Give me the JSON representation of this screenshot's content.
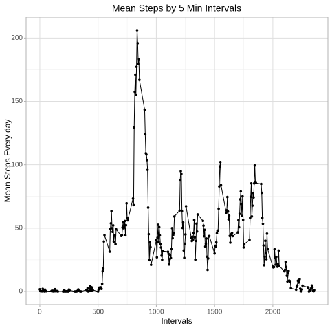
{
  "chart_data": {
    "type": "line",
    "title": "Mean Steps by 5 Min Intervals",
    "x_label": "Intervals",
    "y_label": "Mean Steps Every day",
    "x": [
      0,
      5,
      10,
      15,
      20,
      25,
      30,
      35,
      40,
      45,
      50,
      55,
      100,
      105,
      110,
      115,
      120,
      125,
      130,
      135,
      140,
      145,
      150,
      155,
      200,
      205,
      210,
      215,
      220,
      225,
      230,
      235,
      240,
      245,
      250,
      255,
      300,
      305,
      310,
      315,
      320,
      325,
      330,
      335,
      340,
      345,
      350,
      355,
      400,
      405,
      410,
      415,
      420,
      425,
      430,
      435,
      440,
      445,
      450,
      455,
      500,
      505,
      510,
      515,
      520,
      525,
      530,
      535,
      540,
      545,
      550,
      555,
      600,
      605,
      610,
      615,
      620,
      625,
      630,
      635,
      640,
      645,
      650,
      655,
      700,
      705,
      710,
      715,
      720,
      725,
      730,
      735,
      740,
      745,
      750,
      755,
      800,
      805,
      810,
      815,
      820,
      825,
      830,
      835,
      840,
      845,
      850,
      855,
      900,
      905,
      910,
      915,
      920,
      925,
      930,
      935,
      940,
      945,
      950,
      955,
      1000,
      1005,
      1010,
      1015,
      1020,
      1025,
      1030,
      1035,
      1040,
      1045,
      1050,
      1055,
      1100,
      1105,
      1110,
      1115,
      1120,
      1125,
      1130,
      1135,
      1140,
      1145,
      1150,
      1155,
      1200,
      1205,
      1210,
      1215,
      1220,
      1225,
      1230,
      1235,
      1240,
      1245,
      1250,
      1255,
      1300,
      1305,
      1310,
      1315,
      1320,
      1325,
      1330,
      1335,
      1340,
      1345,
      1350,
      1355,
      1400,
      1405,
      1410,
      1415,
      1420,
      1425,
      1430,
      1435,
      1440,
      1445,
      1450,
      1455,
      1500,
      1505,
      1510,
      1515,
      1520,
      1525,
      1530,
      1535,
      1540,
      1545,
      1550,
      1555,
      1600,
      1605,
      1610,
      1615,
      1620,
      1625,
      1630,
      1635,
      1640,
      1645,
      1650,
      1655,
      1700,
      1705,
      1710,
      1715,
      1720,
      1725,
      1730,
      1735,
      1740,
      1745,
      1750,
      1755,
      1800,
      1805,
      1810,
      1815,
      1820,
      1825,
      1830,
      1835,
      1840,
      1845,
      1850,
      1855,
      1900,
      1905,
      1910,
      1915,
      1920,
      1925,
      1930,
      1935,
      1940,
      1945,
      1950,
      1955,
      2000,
      2005,
      2010,
      2015,
      2020,
      2025,
      2030,
      2035,
      2040,
      2045,
      2050,
      2055,
      2100,
      2105,
      2110,
      2115,
      2120,
      2125,
      2130,
      2135,
      2140,
      2145,
      2150,
      2155,
      2200,
      2205,
      2210,
      2215,
      2220,
      2225,
      2230,
      2235,
      2240,
      2245,
      2250,
      2255,
      2300,
      2305,
      2310,
      2315,
      2320,
      2325,
      2330,
      2335,
      2340,
      2345,
      2350,
      2355
    ],
    "values": [
      1.72,
      0.34,
      0.13,
      0.15,
      0.08,
      2.09,
      0.53,
      0.87,
      0,
      1.47,
      0.3,
      0.13,
      0.32,
      0.68,
      0.15,
      0.34,
      0,
      1.11,
      1.83,
      0.17,
      0.17,
      0.38,
      0.26,
      0,
      0,
      0,
      1.13,
      0,
      0,
      0.13,
      0,
      0.23,
      0,
      0,
      1.55,
      0.94,
      0,
      0,
      0,
      0,
      0.21,
      0.62,
      1.62,
      0.58,
      0.49,
      0.08,
      0,
      0,
      1.19,
      0.94,
      2.57,
      0,
      0.34,
      0.36,
      4.11,
      0.66,
      3.49,
      0.83,
      3.11,
      1.11,
      0,
      1.57,
      3,
      2.25,
      3.32,
      2.96,
      2.09,
      6.06,
      16.02,
      18.34,
      39.45,
      44.49,
      31.49,
      49.26,
      53.77,
      63.45,
      49.96,
      47.08,
      52.15,
      39.34,
      44.02,
      44.17,
      37.36,
      49.04,
      43.81,
      44.38,
      50.51,
      54.51,
      49.92,
      50.98,
      55.68,
      44.32,
      52.26,
      69.55,
      57.85,
      56.15,
      73.38,
      68.21,
      129.43,
      157.53,
      171.15,
      155.4,
      177.3,
      206.17,
      195.92,
      179.57,
      183.4,
      167.02,
      143.45,
      124.04,
      109.11,
      108.11,
      103.72,
      95.96,
      66.21,
      45.23,
      24.79,
      38.75,
      34.98,
      21.06,
      40.57,
      26.98,
      42.42,
      52.66,
      38.92,
      50.79,
      44.28,
      37.42,
      34.7,
      28.34,
      25.09,
      31.94,
      31.36,
      29.68,
      21.32,
      25.55,
      28.38,
      26.47,
      33.43,
      49.98,
      42.04,
      44.6,
      46.04,
      59.19,
      63.87,
      87.7,
      94.85,
      92.77,
      63.4,
      50.17,
      54.47,
      32.42,
      26.53,
      37.74,
      45.06,
      67.28,
      42.34,
      39.89,
      43.26,
      40.98,
      46.25,
      56.43,
      42.75,
      25.13,
      39.96,
      53.55,
      47.32,
      60.81,
      55.75,
      51.96,
      43.58,
      48.7,
      35.47,
      37.55,
      41.85,
      27.51,
      17.11,
      26.08,
      43.62,
      43.77,
      30.02,
      36.08,
      35.49,
      38.85,
      45.96,
      47.75,
      48.13,
      65.32,
      82.91,
      98.66,
      102.11,
      83.96,
      62.13,
      64.13,
      74.55,
      63.17,
      56.91,
      59.77,
      43.87,
      38.57,
      44.66,
      45.45,
      46.21,
      43.68,
      46.62,
      56.3,
      50.72,
      61.23,
      72.72,
      78.94,
      68.94,
      59.66,
      75.09,
      56.51,
      34.77,
      37.45,
      40.68,
      58.02,
      74.7,
      85.32,
      59.26,
      67.77,
      77.7,
      74.25,
      85.34,
      99.45,
      86.58,
      85.6,
      84.87,
      77.83,
      58.04,
      53.36,
      36.32,
      20.72,
      27.4,
      40.02,
      30.21,
      25.55,
      45.66,
      33.53,
      19.62,
      19.02,
      19.34,
      33.34,
      26.81,
      21.17,
      27.3,
      21.34,
      19.55,
      21.32,
      32.3,
      20.15,
      15.94,
      17.23,
      23.45,
      19.25,
      12.45,
      8.02,
      14.66,
      16.3,
      8.68,
      7.79,
      8.13,
      2.62,
      1.45,
      3.68,
      4.81,
      8.51,
      7.08,
      8.7,
      9.75,
      2.21,
      0.32,
      0.11,
      1.6,
      4.6,
      3.3,
      2.85,
      0,
      0.83,
      0.96,
      1.58,
      2.6,
      4.7,
      3.3,
      0.64,
      0.23,
      1.08
    ],
    "color": "#000000",
    "markers": true,
    "xlim": [
      -117.75,
      2472.75
    ],
    "ylim": [
      -10.31,
      216.48
    ],
    "xticks": [
      0,
      500,
      1000,
      1500,
      2000
    ],
    "yticks": [
      0,
      50,
      100,
      150,
      200
    ],
    "grid": true,
    "minor_grid": true
  }
}
